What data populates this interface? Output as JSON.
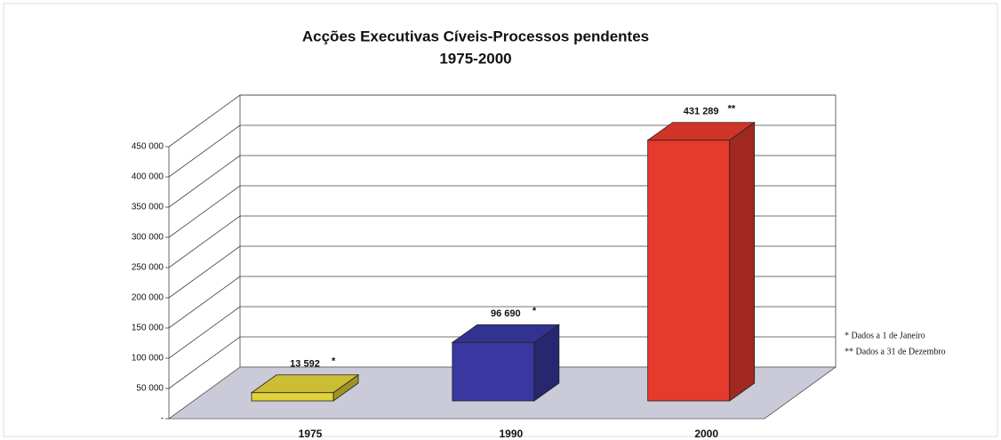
{
  "chart_data": {
    "type": "bar3d",
    "title": "Acções Executivas Cíveis-Processos pendentes",
    "subtitle": "1975-2000",
    "categories": [
      "1975",
      "1990",
      "2000"
    ],
    "values": [
      13592,
      96690,
      431289
    ],
    "value_labels": [
      "13 592",
      "96 690",
      "431 289"
    ],
    "value_label_notes": [
      "*",
      "*",
      "**"
    ],
    "colors": [
      "#e2d23a",
      "#3838a0",
      "#e63a2c"
    ],
    "ylim": [
      0,
      450000
    ],
    "yticks": [
      {
        "value": 0,
        "label": "-"
      },
      {
        "value": 50000,
        "label": "50 000"
      },
      {
        "value": 100000,
        "label": "100 000"
      },
      {
        "value": 150000,
        "label": "150 000"
      },
      {
        "value": 200000,
        "label": "200 000"
      },
      {
        "value": 250000,
        "label": "250 000"
      },
      {
        "value": 300000,
        "label": "300 000"
      },
      {
        "value": 350000,
        "label": "350 000"
      },
      {
        "value": 400000,
        "label": "400 000"
      },
      {
        "value": 450000,
        "label": "450 000"
      }
    ],
    "grid": true,
    "notes": [
      "* Dados a 1 de Janeiro",
      "** Dados a 31 de Dezembro"
    ]
  }
}
